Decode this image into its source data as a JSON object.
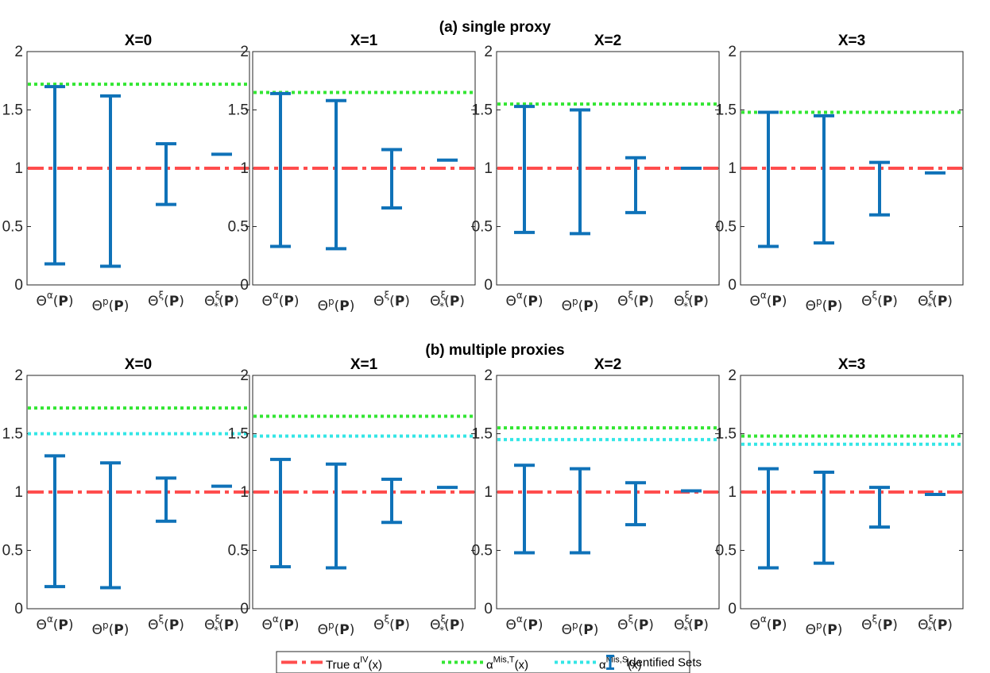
{
  "colors": {
    "true_line": "#ff4d4d",
    "mis_t": "#33e633",
    "mis_s": "#33e6e6",
    "identified": "#0f72b8",
    "axis": "#262626"
  },
  "rows": [
    {
      "title": "(a) single proxy",
      "panels": [
        {
          "title": "X=0"
        },
        {
          "title": "X=1"
        },
        {
          "title": "X=2"
        },
        {
          "title": "X=3"
        }
      ]
    },
    {
      "title": "(b) multiple proxies",
      "panels": [
        {
          "title": "X=0"
        },
        {
          "title": "X=1"
        },
        {
          "title": "X=2"
        },
        {
          "title": "X=3"
        }
      ]
    }
  ],
  "chart_data": {
    "type": "errorbar",
    "ylim": [
      0,
      2
    ],
    "yticks": [
      "0",
      "0.5",
      "1",
      "1.5",
      "2"
    ],
    "categories": [
      {
        "base": "Θ",
        "sup": "α",
        "sub": "",
        "arg": "P"
      },
      {
        "base": "Θ",
        "sup": "p",
        "sub": "",
        "arg": "P"
      },
      {
        "base": "Θ",
        "sup": "ξ",
        "sub": "",
        "arg": "P"
      },
      {
        "base": "Θ",
        "sup": "ξ",
        "sub": "*",
        "arg": "P"
      }
    ],
    "panels": [
      {
        "row": 0,
        "x": 0,
        "true_iv": 1.0,
        "mis_t": 1.72,
        "mis_s": null,
        "intervals": [
          [
            0.18,
            1.7
          ],
          [
            0.16,
            1.62
          ],
          [
            0.69,
            1.21
          ],
          [
            1.12,
            1.12
          ]
        ]
      },
      {
        "row": 0,
        "x": 1,
        "true_iv": 1.0,
        "mis_t": 1.65,
        "mis_s": null,
        "intervals": [
          [
            0.33,
            1.64
          ],
          [
            0.31,
            1.58
          ],
          [
            0.66,
            1.16
          ],
          [
            1.07,
            1.07
          ]
        ]
      },
      {
        "row": 0,
        "x": 2,
        "true_iv": 1.0,
        "mis_t": 1.55,
        "mis_s": null,
        "intervals": [
          [
            0.45,
            1.53
          ],
          [
            0.44,
            1.5
          ],
          [
            0.62,
            1.09
          ],
          [
            1.0,
            1.0
          ]
        ]
      },
      {
        "row": 0,
        "x": 3,
        "true_iv": 1.0,
        "mis_t": 1.48,
        "mis_s": null,
        "intervals": [
          [
            0.33,
            1.48
          ],
          [
            0.36,
            1.45
          ],
          [
            0.6,
            1.05
          ],
          [
            0.96,
            0.96
          ]
        ]
      },
      {
        "row": 1,
        "x": 0,
        "true_iv": 1.0,
        "mis_t": 1.72,
        "mis_s": 1.5,
        "intervals": [
          [
            0.19,
            1.31
          ],
          [
            0.18,
            1.25
          ],
          [
            0.75,
            1.12
          ],
          [
            1.05,
            1.05
          ]
        ]
      },
      {
        "row": 1,
        "x": 1,
        "true_iv": 1.0,
        "mis_t": 1.65,
        "mis_s": 1.48,
        "intervals": [
          [
            0.36,
            1.28
          ],
          [
            0.35,
            1.24
          ],
          [
            0.74,
            1.11
          ],
          [
            1.04,
            1.04
          ]
        ]
      },
      {
        "row": 1,
        "x": 2,
        "true_iv": 1.0,
        "mis_t": 1.55,
        "mis_s": 1.45,
        "intervals": [
          [
            0.48,
            1.23
          ],
          [
            0.48,
            1.2
          ],
          [
            0.72,
            1.08
          ],
          [
            1.01,
            1.01
          ]
        ]
      },
      {
        "row": 1,
        "x": 3,
        "true_iv": 1.0,
        "mis_t": 1.48,
        "mis_s": 1.41,
        "intervals": [
          [
            0.35,
            1.2
          ],
          [
            0.39,
            1.17
          ],
          [
            0.7,
            1.04
          ],
          [
            0.98,
            0.98
          ]
        ]
      }
    ],
    "legend": {
      "placement": "bottom-center",
      "items": [
        {
          "key": "true",
          "prefix": "True ",
          "sym": "α",
          "sup": "IV",
          "suffix": "(x)"
        },
        {
          "key": "mis_t",
          "prefix": "",
          "sym": "α",
          "sup": "Mis,T",
          "suffix": "(x)"
        },
        {
          "key": "mis_s",
          "prefix": "",
          "sym": "α",
          "sup": "Mis,S",
          "suffix": "(x)"
        },
        {
          "key": "sets",
          "prefix": "",
          "sym": "",
          "sup": "",
          "suffix": "",
          "label": "Identified Sets"
        }
      ]
    }
  }
}
